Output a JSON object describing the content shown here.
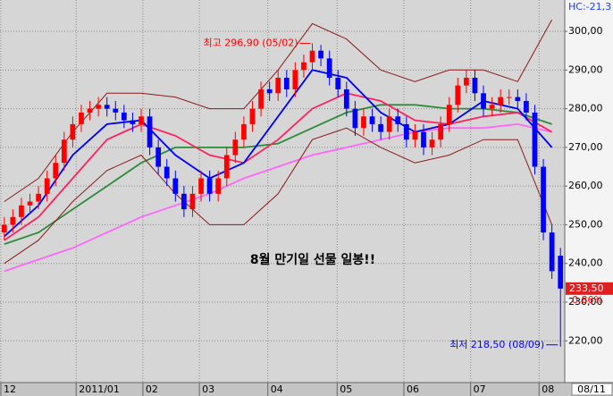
{
  "chart_data": {
    "type": "candlestick",
    "open": [
      248,
      250,
      252,
      255,
      256,
      258,
      262,
      266,
      272,
      276,
      279,
      280,
      281,
      280,
      279,
      277,
      276,
      278,
      270,
      265,
      262,
      258,
      254,
      258,
      262,
      258,
      262,
      268,
      272,
      276,
      280,
      285,
      284,
      288,
      285,
      290,
      292,
      295,
      293,
      288,
      285,
      280,
      275,
      278,
      276,
      274,
      278,
      276,
      272,
      274,
      270,
      272,
      276,
      281,
      286,
      288,
      284,
      280,
      281,
      283,
      283,
      282,
      279,
      265,
      248,
      242
    ],
    "high": [
      252,
      254,
      257,
      258,
      260,
      264,
      268,
      274,
      278,
      281,
      282,
      283,
      283,
      282,
      281,
      279,
      280,
      280,
      272,
      267,
      264,
      260,
      260,
      264,
      264,
      264,
      270,
      274,
      278,
      282,
      287,
      287,
      290,
      290,
      292,
      294,
      296.9,
      296.5,
      295,
      290,
      287,
      282,
      280,
      280,
      278,
      280,
      280,
      278,
      276,
      276,
      274,
      278,
      283,
      288,
      290,
      290,
      286,
      283,
      285,
      285,
      285,
      284,
      281,
      267,
      250,
      244
    ],
    "low": [
      246,
      248,
      250,
      253,
      254,
      256,
      260,
      264,
      270,
      274,
      277,
      278,
      278,
      277,
      275,
      274,
      274,
      268,
      263,
      260,
      256,
      252,
      252,
      256,
      256,
      256,
      260,
      266,
      270,
      274,
      278,
      282,
      282,
      283,
      283,
      288,
      290,
      291,
      286,
      283,
      278,
      273,
      273,
      274,
      272,
      272,
      274,
      270,
      270,
      268,
      268,
      270,
      274,
      279,
      284,
      282,
      278,
      278,
      279,
      281,
      280,
      277,
      263,
      246,
      236,
      218.5
    ],
    "close": [
      250,
      252,
      255,
      256,
      258,
      262,
      266,
      272,
      276,
      279,
      280,
      281,
      280,
      279,
      277,
      276,
      278,
      270,
      265,
      262,
      258,
      254,
      258,
      262,
      258,
      262,
      268,
      272,
      276,
      280,
      285,
      284,
      288,
      285,
      290,
      292,
      295,
      293,
      288,
      285,
      280,
      275,
      278,
      276,
      274,
      278,
      276,
      272,
      274,
      270,
      272,
      276,
      281,
      286,
      288,
      284,
      280,
      281,
      283,
      283,
      282,
      279,
      265,
      248,
      238,
      233.5
    ],
    "up_color": "#ff0000",
    "down_color": "#0000ff",
    "lines": [
      {
        "color": "#ff66ff",
        "x": [
          0,
          4,
          8,
          12,
          16,
          20,
          24,
          28,
          32,
          36,
          40,
          44,
          48,
          52,
          56,
          60,
          64
        ],
        "values": [
          238,
          241,
          244,
          248,
          252,
          255,
          258,
          262,
          265,
          268,
          270,
          272,
          274,
          275,
          275,
          276,
          274
        ]
      },
      {
        "color": "#2e8b3a",
        "x": [
          0,
          4,
          8,
          12,
          16,
          20,
          24,
          28,
          32,
          36,
          40,
          44,
          48,
          52,
          56,
          60,
          64
        ],
        "values": [
          245,
          248,
          254,
          260,
          266,
          270,
          270,
          270,
          271,
          275,
          279,
          281,
          281,
          280,
          280,
          279,
          276
        ]
      },
      {
        "color": "#ff2060",
        "x": [
          0,
          4,
          8,
          12,
          16,
          20,
          24,
          28,
          32,
          36,
          40,
          44,
          48,
          52,
          56,
          60,
          64
        ],
        "values": [
          246,
          252,
          262,
          272,
          276,
          273,
          268,
          266,
          272,
          280,
          284,
          282,
          277,
          276,
          278,
          279,
          274
        ]
      },
      {
        "color": "#0000ee",
        "x": [
          0,
          4,
          8,
          12,
          16,
          20,
          24,
          28,
          32,
          36,
          40,
          44,
          48,
          52,
          56,
          60,
          64
        ],
        "values": [
          247,
          255,
          268,
          276,
          277,
          268,
          262,
          266,
          278,
          290,
          288,
          279,
          274,
          276,
          282,
          280,
          270
        ]
      },
      {
        "color": "#8b1a1a",
        "x": [
          0,
          4,
          8,
          12,
          16,
          20,
          24,
          28,
          32,
          36,
          40,
          44,
          48,
          52,
          56,
          60,
          64
        ],
        "values": [
          256,
          262,
          274,
          284,
          284,
          283,
          280,
          280,
          290,
          302,
          298,
          290,
          287,
          290,
          290,
          287,
          303
        ]
      },
      {
        "color": "#8b1a1a",
        "x": [
          0,
          4,
          8,
          12,
          16,
          20,
          24,
          28,
          32,
          36,
          40,
          44,
          48,
          52,
          56,
          60,
          64
        ],
        "values": [
          240,
          246,
          256,
          264,
          268,
          258,
          250,
          250,
          258,
          272,
          275,
          270,
          266,
          268,
          272,
          272,
          250
        ]
      }
    ],
    "xlim": [
      -0.5,
      65.5
    ],
    "xticks": [
      {
        "value": -0.4,
        "label": "12"
      },
      {
        "value": 8.4,
        "label": "2011/01"
      },
      {
        "value": 16.2,
        "label": "02"
      },
      {
        "value": 22.8,
        "label": "03"
      },
      {
        "value": 30.8,
        "label": "04"
      },
      {
        "value": 38.9,
        "label": "05"
      },
      {
        "value": 46.7,
        "label": "06"
      },
      {
        "value": 54.5,
        "label": "07"
      },
      {
        "value": 62.5,
        "label": "08"
      }
    ],
    "ylim": [
      209.2,
      308.1
    ],
    "yticks": [
      {
        "value": 220,
        "label": "220,00"
      },
      {
        "value": 230,
        "label": "230,00"
      },
      {
        "value": 240,
        "label": "240,00"
      },
      {
        "value": 250,
        "label": "250,00"
      },
      {
        "value": 260,
        "label": "260,00"
      },
      {
        "value": 270,
        "label": "270,00"
      },
      {
        "value": 280,
        "label": "280,00"
      },
      {
        "value": 290,
        "label": "290,00"
      },
      {
        "value": 300,
        "label": "300,00"
      }
    ],
    "grid": true,
    "high_annotation": "최고 296,90 (05/02)",
    "low_annotation": "최저 218,50 (08/09)",
    "center_note": "8월 만기일 선물 일봉!!",
    "header_label": "HC:-21,3",
    "last_price": {
      "value": 233.5,
      "label": "233,50"
    },
    "change_label": "0,86%",
    "current_date": "08/11"
  }
}
